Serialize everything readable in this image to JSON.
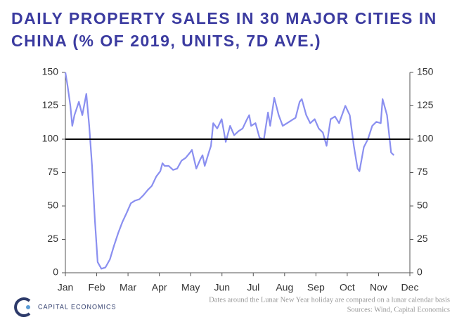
{
  "chart_data": {
    "type": "line",
    "title_lines": [
      "DAILY PROPERTY SALES IN 30 MAJOR CITIES IN",
      "CHINA (% OF 2019, UNITS, 7D AVE.)"
    ],
    "x": [
      0,
      0.07,
      0.16,
      0.22,
      0.29,
      0.43,
      0.54,
      0.67,
      0.76,
      0.85,
      0.94,
      1.03,
      1.15,
      1.28,
      1.42,
      1.55,
      1.69,
      1.82,
      1.96,
      2.09,
      2.22,
      2.36,
      2.49,
      2.63,
      2.76,
      2.9,
      3.03,
      3.1,
      3.17,
      3.3,
      3.44,
      3.57,
      3.71,
      3.84,
      3.98,
      4.04,
      4.11,
      4.18,
      4.31,
      4.38,
      4.45,
      4.58,
      4.65,
      4.72,
      4.85,
      4.99,
      5.12,
      5.26,
      5.39,
      5.53,
      5.66,
      5.8,
      5.87,
      5.93,
      6.07,
      6.2,
      6.34,
      6.47,
      6.54,
      6.67,
      6.81,
      6.94,
      7.08,
      7.21,
      7.35,
      7.48,
      7.55,
      7.69,
      7.82,
      7.96,
      8.09,
      8.22,
      8.34,
      8.47,
      8.61,
      8.74,
      8.94,
      9.08,
      9.21,
      9.33,
      9.39,
      9.53,
      9.66,
      9.8,
      9.93,
      10.07,
      10.13,
      10.27,
      10.4,
      10.49
    ],
    "values": [
      150,
      140,
      125,
      110,
      118,
      128,
      118,
      134,
      110,
      80,
      40,
      8,
      3,
      4,
      10,
      20,
      30,
      38,
      45,
      52,
      54,
      55,
      58,
      62,
      65,
      72,
      76,
      82,
      80,
      80,
      77,
      78,
      84,
      86,
      90,
      92,
      85,
      78,
      85,
      88,
      80,
      90,
      95,
      112,
      108,
      115,
      98,
      110,
      103,
      106,
      108,
      115,
      118,
      110,
      112,
      101,
      100,
      120,
      110,
      131,
      118,
      110,
      112,
      114,
      116,
      128,
      130,
      118,
      112,
      115,
      108,
      105,
      95,
      115,
      117,
      112,
      125,
      118,
      95,
      78,
      76,
      94,
      100,
      110,
      113,
      112,
      130,
      118,
      90,
      88
    ],
    "color": "#8a8ff0",
    "xlim": [
      0,
      11
    ],
    "xticks": [
      {
        "value": 0,
        "label": "Jan"
      },
      {
        "value": 1,
        "label": "Feb"
      },
      {
        "value": 2,
        "label": "Mar"
      },
      {
        "value": 3,
        "label": "Apr"
      },
      {
        "value": 4,
        "label": "May"
      },
      {
        "value": 5,
        "label": "Jun"
      },
      {
        "value": 6,
        "label": "Jul"
      },
      {
        "value": 7,
        "label": "Aug"
      },
      {
        "value": 8,
        "label": "Sep"
      },
      {
        "value": 9,
        "label": "Oct"
      },
      {
        "value": 10,
        "label": "Nov"
      },
      {
        "value": 11,
        "label": "Dec"
      }
    ],
    "ylim": [
      0,
      150
    ],
    "yticks": [
      0,
      25,
      50,
      75,
      100,
      125,
      150
    ],
    "y2lim": [
      0,
      150
    ],
    "y2ticks": [
      0,
      25,
      50,
      75,
      100,
      125,
      150
    ],
    "reference_line": 100,
    "note": "Dates around the Lunar New Year holiday are compared on a lunar calendar basis",
    "source": "Sources: Wind, Capital Economics",
    "logo": "CAPITAL ECONOMICS"
  }
}
